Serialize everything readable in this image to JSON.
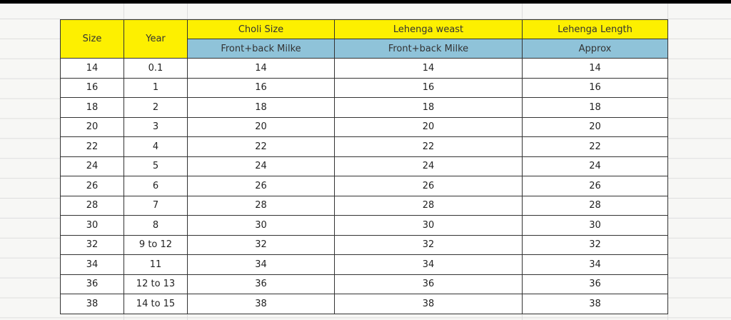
{
  "headers": {
    "size": "Size",
    "year": "Year",
    "choli": "Choli Size",
    "choli_sub": "Front+back Milke",
    "waist": "Lehenga weast",
    "waist_sub": "Front+back Milke",
    "length": "Lehenga Length",
    "length_sub": "Approx"
  },
  "rows": [
    [
      "14",
      "0.1",
      "14",
      "14",
      "14"
    ],
    [
      "16",
      "1",
      "16",
      "16",
      "16"
    ],
    [
      "18",
      "2",
      "18",
      "18",
      "18"
    ],
    [
      "20",
      "3",
      "20",
      "20",
      "20"
    ],
    [
      "22",
      "4",
      "22",
      "22",
      "22"
    ],
    [
      "24",
      "5",
      "24",
      "24",
      "24"
    ],
    [
      "26",
      "6",
      "26",
      "26",
      "26"
    ],
    [
      "28",
      "7",
      "28",
      "28",
      "28"
    ],
    [
      "30",
      "8",
      "30",
      "30",
      "30"
    ],
    [
      "32",
      "9 to 12",
      "32",
      "32",
      "32"
    ],
    [
      "34",
      "11",
      "34",
      "34",
      "34"
    ],
    [
      "36",
      "12 to 13",
      "36",
      "36",
      "36"
    ],
    [
      "38",
      "14 to 15",
      "38",
      "38",
      "38"
    ]
  ],
  "colors": {
    "header_yellow": "#fdf000",
    "header_blue": "#8fc3d9"
  }
}
